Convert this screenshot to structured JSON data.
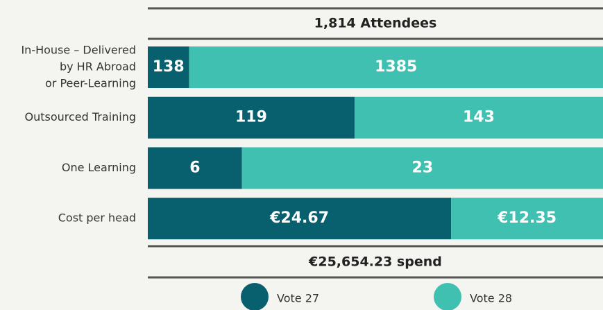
{
  "chart_data": {
    "type": "bar",
    "orientation": "horizontal",
    "stacked": true,
    "header": "1,814 Attendees",
    "footer": "€25,654.23 spend",
    "categories": [
      [
        "In-House – Delivered",
        "by HR Abroad",
        "or Peer-Learning"
      ],
      "Outsourced Training",
      "One Learning",
      "Cost per head"
    ],
    "series": [
      {
        "name": "Vote 27",
        "color": "#08606e",
        "values": [
          138,
          119,
          6,
          24.67
        ],
        "value_labels": [
          "138",
          "119",
          "6",
          "€24.67"
        ]
      },
      {
        "name": "Vote 28",
        "color": "#40c0b0",
        "values": [
          1385,
          143,
          23,
          12.35
        ],
        "value_labels": [
          "1385",
          "143",
          "23",
          "€12.35"
        ]
      }
    ]
  }
}
